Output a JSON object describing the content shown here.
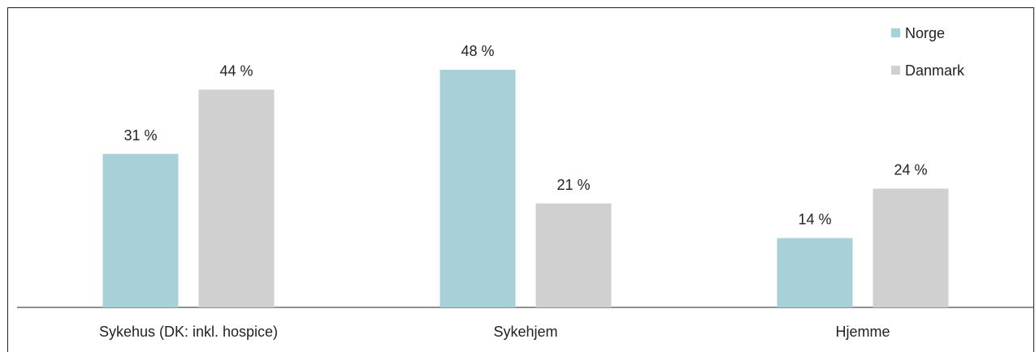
{
  "chart_data": {
    "type": "bar",
    "categories": [
      "Sykehus (DK: inkl. hospice)",
      "Sykehjem",
      "Hjemme"
    ],
    "series": [
      {
        "name": "Norge",
        "values": [
          31,
          48,
          14
        ],
        "labels": [
          "31 %",
          "48 %",
          "14 %"
        ],
        "color": "#a7d0d8"
      },
      {
        "name": "Danmark",
        "values": [
          44,
          21,
          24
        ],
        "labels": [
          "44 %",
          "21 %",
          "24 %"
        ],
        "color": "#d0d0d0"
      }
    ],
    "ylim": [
      0,
      48
    ],
    "grid": false,
    "legend_position": "top-right"
  }
}
